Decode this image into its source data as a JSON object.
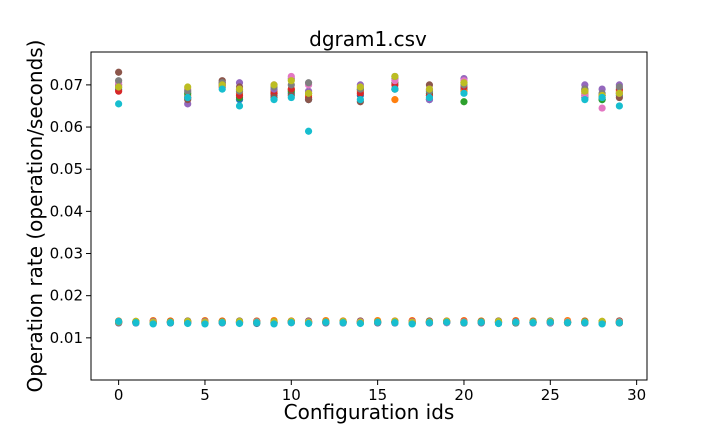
{
  "chart_data": {
    "type": "scatter",
    "title": "dgram1.csv",
    "xlabel": "Configuration ids",
    "ylabel": "Operation rate (operation/seconds)",
    "xlim": [
      -1.6,
      30.6
    ],
    "ylim": [
      0.0,
      0.0778
    ],
    "xticks": [
      0,
      5,
      10,
      15,
      20,
      25,
      30
    ],
    "xtick_labels": [
      "0",
      "5",
      "10",
      "15",
      "20",
      "25",
      "30"
    ],
    "yticks": [
      0.01,
      0.02,
      0.03,
      0.04,
      0.05,
      0.06,
      0.07
    ],
    "ytick_labels": [
      "0.01",
      "0.02",
      "0.03",
      "0.04",
      "0.05",
      "0.06",
      "0.07"
    ],
    "grid": false,
    "legend": "none",
    "colors": [
      "#1f77b4",
      "#ff7f0e",
      "#2ca02c",
      "#d62728",
      "#9467bd",
      "#8c564b",
      "#e377c2",
      "#7f7f7f",
      "#bcbd22",
      "#17becf"
    ],
    "high_cluster": {
      "x": [
        0,
        4,
        6,
        7,
        9,
        10,
        11,
        14,
        16,
        18,
        20,
        27,
        28,
        29
      ],
      "series": [
        {
          "values": [
            0.069,
            0.067,
            0.07,
            0.0665,
            0.0675,
            0.068,
            0.0665,
            0.0675,
            0.069,
            0.0665,
            0.069,
            0.067,
            0.0665,
            0.0675
          ]
        },
        {
          "values": [
            0.07,
            0.0675,
            0.0705,
            0.068,
            0.0685,
            0.069,
            0.0675,
            0.0685,
            0.0665,
            0.0675,
            0.0685,
            0.068,
            0.067,
            0.0685
          ]
        },
        {
          "values": [
            0.0695,
            0.068,
            0.07,
            0.067,
            0.068,
            0.0685,
            0.068,
            0.069,
            0.0705,
            0.068,
            0.066,
            0.0675,
            0.0665,
            0.068
          ]
        },
        {
          "values": [
            0.0685,
            0.067,
            0.0695,
            0.0675,
            0.068,
            0.069,
            0.067,
            0.068,
            0.07,
            0.0675,
            0.0695,
            0.0685,
            0.0675,
            0.069
          ]
        },
        {
          "values": [
            0.07,
            0.0655,
            0.0705,
            0.0705,
            0.069,
            0.0715,
            0.0685,
            0.07,
            0.0715,
            0.0665,
            0.0715,
            0.07,
            0.069,
            0.07
          ]
        },
        {
          "values": [
            0.073,
            0.0665,
            0.071,
            0.0695,
            0.067,
            0.0675,
            0.0665,
            0.066,
            0.069,
            0.07,
            0.0705,
            0.069,
            0.0675,
            0.067
          ]
        },
        {
          "values": [
            0.0705,
            0.069,
            0.07,
            0.069,
            0.07,
            0.072,
            0.07,
            0.0695,
            0.071,
            0.069,
            0.071,
            0.0675,
            0.0645,
            0.068
          ]
        },
        {
          "values": [
            0.071,
            0.0685,
            0.0705,
            0.0685,
            0.0695,
            0.07,
            0.0705,
            0.069,
            0.072,
            0.0685,
            0.07,
            0.069,
            0.068,
            0.0695
          ]
        },
        {
          "values": [
            0.0695,
            0.0695,
            0.07,
            0.069,
            0.07,
            0.071,
            0.068,
            0.0695,
            0.072,
            0.069,
            0.0705,
            0.0685,
            0.0675,
            0.068
          ]
        },
        {
          "values": [
            0.0655,
            0.067,
            0.069,
            0.065,
            0.0665,
            0.067,
            0.059,
            0.0665,
            0.069,
            0.067,
            0.068,
            0.0665,
            0.067,
            0.065
          ]
        }
      ]
    },
    "low_cluster": {
      "x": [
        0,
        1,
        2,
        3,
        4,
        5,
        6,
        7,
        8,
        9,
        10,
        11,
        12,
        13,
        14,
        15,
        16,
        17,
        18,
        19,
        20,
        21,
        22,
        23,
        24,
        25,
        26,
        27,
        28,
        29
      ],
      "series": [
        {
          "values": [
            0.0136,
            0.0135,
            0.0134,
            0.0135,
            0.0136,
            0.0135,
            0.0136,
            0.0135,
            0.0134,
            0.0135,
            0.0136,
            0.0135,
            0.0136,
            0.0135,
            0.0135,
            0.0136,
            0.0135,
            0.0134,
            0.0135,
            0.0136,
            0.0135,
            0.0136,
            0.0134,
            0.0135,
            0.0136,
            0.0135,
            0.0136,
            0.0135,
            0.0134,
            0.0135
          ]
        },
        {
          "values": [
            0.014,
            0.0139,
            0.0141,
            0.014,
            0.0139,
            0.0141,
            0.014,
            0.0139,
            0.014,
            0.0141,
            0.014,
            0.0139,
            0.0141,
            0.014,
            0.0139,
            0.0141,
            0.014,
            0.0141,
            0.0139,
            0.014,
            0.0141,
            0.014,
            0.0139,
            0.0141,
            0.014,
            0.0139,
            0.0141,
            0.014,
            0.0139,
            0.014
          ]
        },
        {
          "values": [
            0.0137,
            0.0138,
            0.0136,
            0.0137,
            0.0138,
            0.0136,
            0.0137,
            0.0138,
            0.0137,
            0.0136,
            0.0138,
            0.0137,
            0.0136,
            0.0137,
            0.0138,
            0.0136,
            0.0137,
            0.0136,
            0.0138,
            0.0137,
            0.0136,
            0.0138,
            0.0137,
            0.0136,
            0.0137,
            0.0138,
            0.0136,
            0.0137,
            0.0138,
            0.0136
          ]
        },
        {
          "values": [
            0.0138,
            0.0137,
            0.0138,
            0.0139,
            0.0137,
            0.0138,
            0.0139,
            0.0137,
            0.0138,
            0.0137,
            0.0139,
            0.0138,
            0.0137,
            0.0139,
            0.0138,
            0.0137,
            0.0138,
            0.0139,
            0.0137,
            0.0138,
            0.0139,
            0.0137,
            0.0138,
            0.0139,
            0.0137,
            0.0138,
            0.0137,
            0.0139,
            0.0138,
            0.0137
          ]
        },
        {
          "values": [
            0.0135,
            0.0136,
            0.0137,
            0.0136,
            0.0135,
            0.0137,
            0.0135,
            0.0136,
            0.0137,
            0.0135,
            0.0136,
            0.0137,
            0.0135,
            0.0136,
            0.0137,
            0.0135,
            0.0136,
            0.0137,
            0.0135,
            0.0136,
            0.0137,
            0.0135,
            0.0136,
            0.0137,
            0.0135,
            0.0136,
            0.0137,
            0.0135,
            0.0136,
            0.0137
          ]
        },
        {
          "values": [
            0.0139,
            0.0138,
            0.0139,
            0.0138,
            0.014,
            0.0139,
            0.0138,
            0.014,
            0.0139,
            0.0138,
            0.0139,
            0.014,
            0.0138,
            0.0139,
            0.014,
            0.0138,
            0.0139,
            0.0138,
            0.014,
            0.0139,
            0.0138,
            0.0139,
            0.014,
            0.0138,
            0.0139,
            0.014,
            0.0138,
            0.0139,
            0.0138,
            0.014
          ]
        },
        {
          "values": [
            0.0137,
            0.0136,
            0.0138,
            0.0137,
            0.0136,
            0.0138,
            0.0137,
            0.0136,
            0.0138,
            0.0137,
            0.0136,
            0.0138,
            0.0137,
            0.0136,
            0.0138,
            0.0137,
            0.0136,
            0.0138,
            0.0137,
            0.0136,
            0.0138,
            0.0137,
            0.0136,
            0.0138,
            0.0137,
            0.0136,
            0.0138,
            0.0137,
            0.0136,
            0.0138
          ]
        },
        {
          "values": [
            0.0136,
            0.0137,
            0.0135,
            0.0136,
            0.0137,
            0.0135,
            0.0136,
            0.0137,
            0.0135,
            0.0136,
            0.0137,
            0.0135,
            0.0136,
            0.0137,
            0.0135,
            0.0136,
            0.0137,
            0.0135,
            0.0136,
            0.0137,
            0.0135,
            0.0136,
            0.0137,
            0.0135,
            0.0136,
            0.0137,
            0.0135,
            0.0136,
            0.0137,
            0.0135
          ]
        },
        {
          "values": [
            0.0138,
            0.0139,
            0.0137,
            0.0138,
            0.0139,
            0.0137,
            0.0138,
            0.0139,
            0.0137,
            0.0138,
            0.0139,
            0.0137,
            0.0138,
            0.0139,
            0.0137,
            0.0138,
            0.0139,
            0.0137,
            0.0138,
            0.0139,
            0.0137,
            0.0138,
            0.0139,
            0.0137,
            0.0138,
            0.0139,
            0.0137,
            0.0138,
            0.0139,
            0.0137
          ]
        },
        {
          "values": [
            0.0139,
            0.0136,
            0.0133,
            0.0136,
            0.0134,
            0.0133,
            0.0136,
            0.0134,
            0.0136,
            0.0133,
            0.0136,
            0.0134,
            0.0137,
            0.0136,
            0.0134,
            0.0137,
            0.0136,
            0.0133,
            0.0136,
            0.0137,
            0.0136,
            0.0137,
            0.0134,
            0.0137,
            0.0136,
            0.0137,
            0.0136,
            0.0136,
            0.0133,
            0.0136
          ]
        }
      ]
    }
  }
}
